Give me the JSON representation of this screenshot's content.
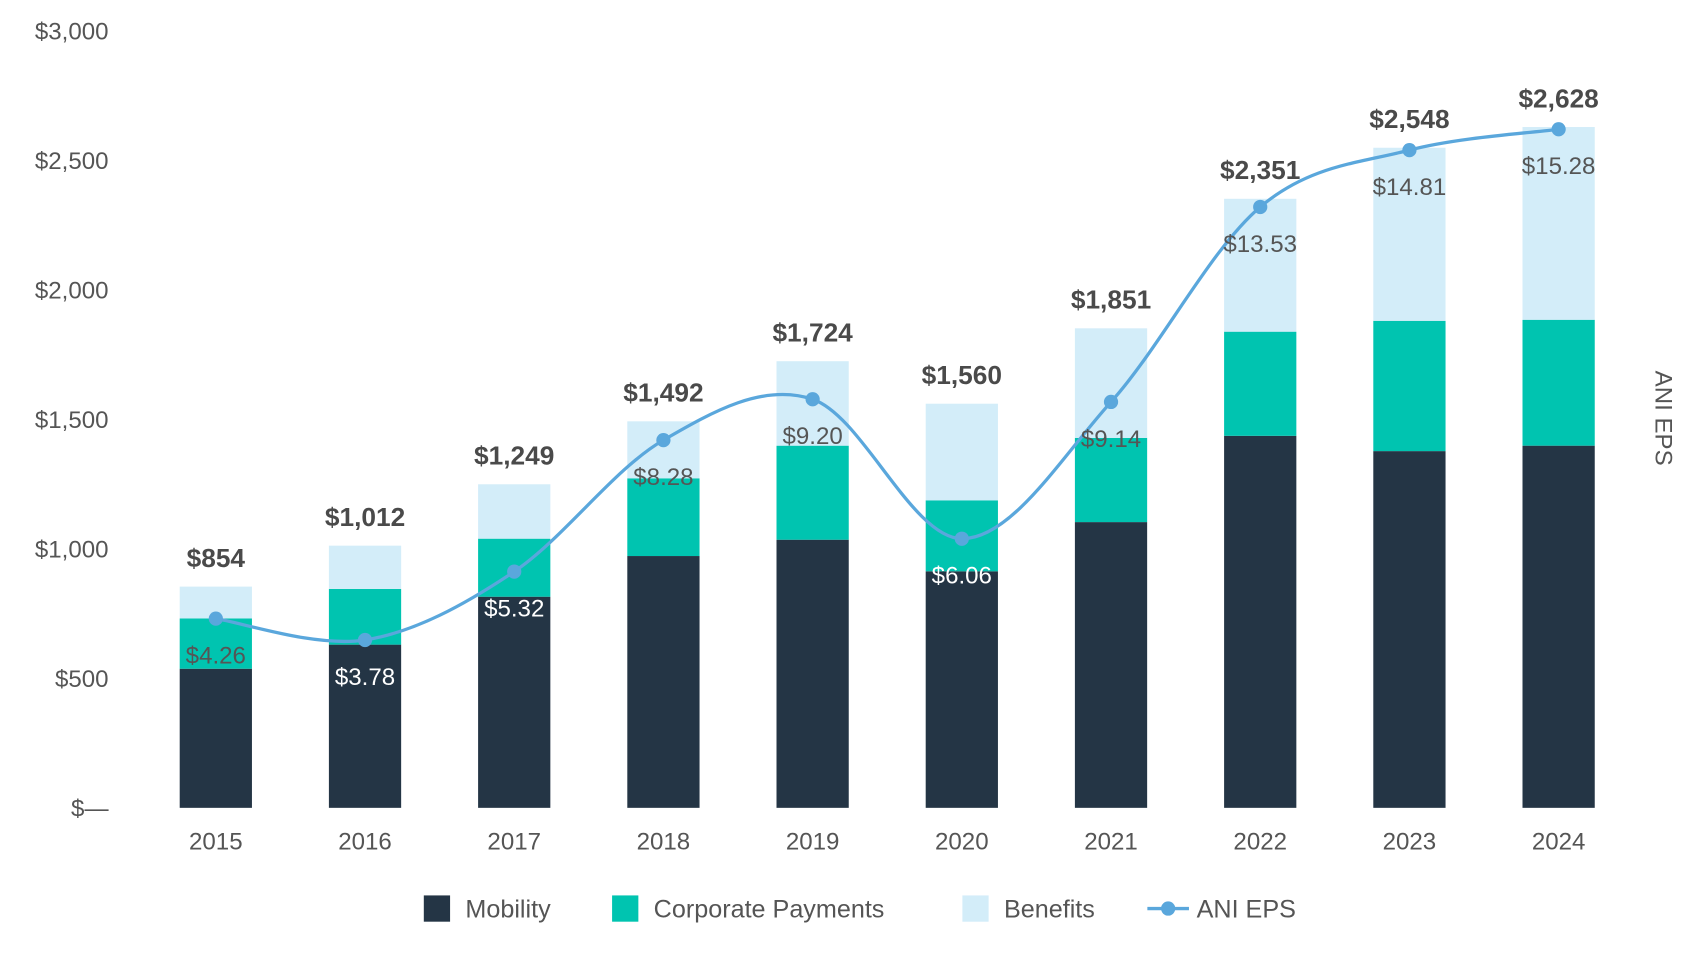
{
  "chart_data": {
    "type": "bar",
    "stacked": true,
    "categories": [
      "2015",
      "2016",
      "2017",
      "2018",
      "2019",
      "2020",
      "2021",
      "2022",
      "2023",
      "2024"
    ],
    "series": [
      {
        "name": "Mobility",
        "color": "#243545",
        "values": [
          537,
          630,
          815,
          972,
          1035,
          913,
          1103,
          1436,
          1377,
          1398
        ]
      },
      {
        "name": "Corporate Payments",
        "color": "#00c4b0",
        "values": [
          194,
          215,
          224,
          300,
          363,
          274,
          325,
          402,
          503,
          486
        ]
      },
      {
        "name": "Benefits",
        "color": "#d3edf9",
        "values": [
          123,
          167,
          210,
          220,
          326,
          373,
          423,
          513,
          668,
          744
        ]
      }
    ],
    "totals": [
      "$854",
      "$1,012",
      "$1,249",
      "$1,492",
      "$1,724",
      "$1,560",
      "$1,851",
      "$2,351",
      "$2,548",
      "$2,628"
    ],
    "line_series": {
      "name": "ANI EPS",
      "color": "#5aa7dc",
      "axis": "secondary",
      "values": [
        4.26,
        3.78,
        5.32,
        8.28,
        9.2,
        6.06,
        9.14,
        13.53,
        14.81,
        15.28
      ],
      "labels": [
        "$4.26",
        "$3.78",
        "$5.32",
        "$8.28",
        "$9.20",
        "$6.06",
        "$9.14",
        "$13.53",
        "$14.81",
        "$15.28"
      ]
    },
    "ylim": [
      0,
      3000
    ],
    "y2lim": [
      0,
      17.5
    ],
    "yticks": [
      0,
      500,
      1000,
      1500,
      2000,
      2500,
      3000
    ],
    "ytick_labels": [
      "$—",
      "$500",
      "$1,000",
      "$1,500",
      "$2,000",
      "$2,500",
      "$3,000"
    ],
    "y2label": "ANI EPS",
    "xlabel": "",
    "ylabel": "",
    "grid": false,
    "legend_position": "bottom",
    "legend": [
      "Mobility",
      "Corporate Payments",
      "Benefits",
      "ANI EPS"
    ]
  }
}
